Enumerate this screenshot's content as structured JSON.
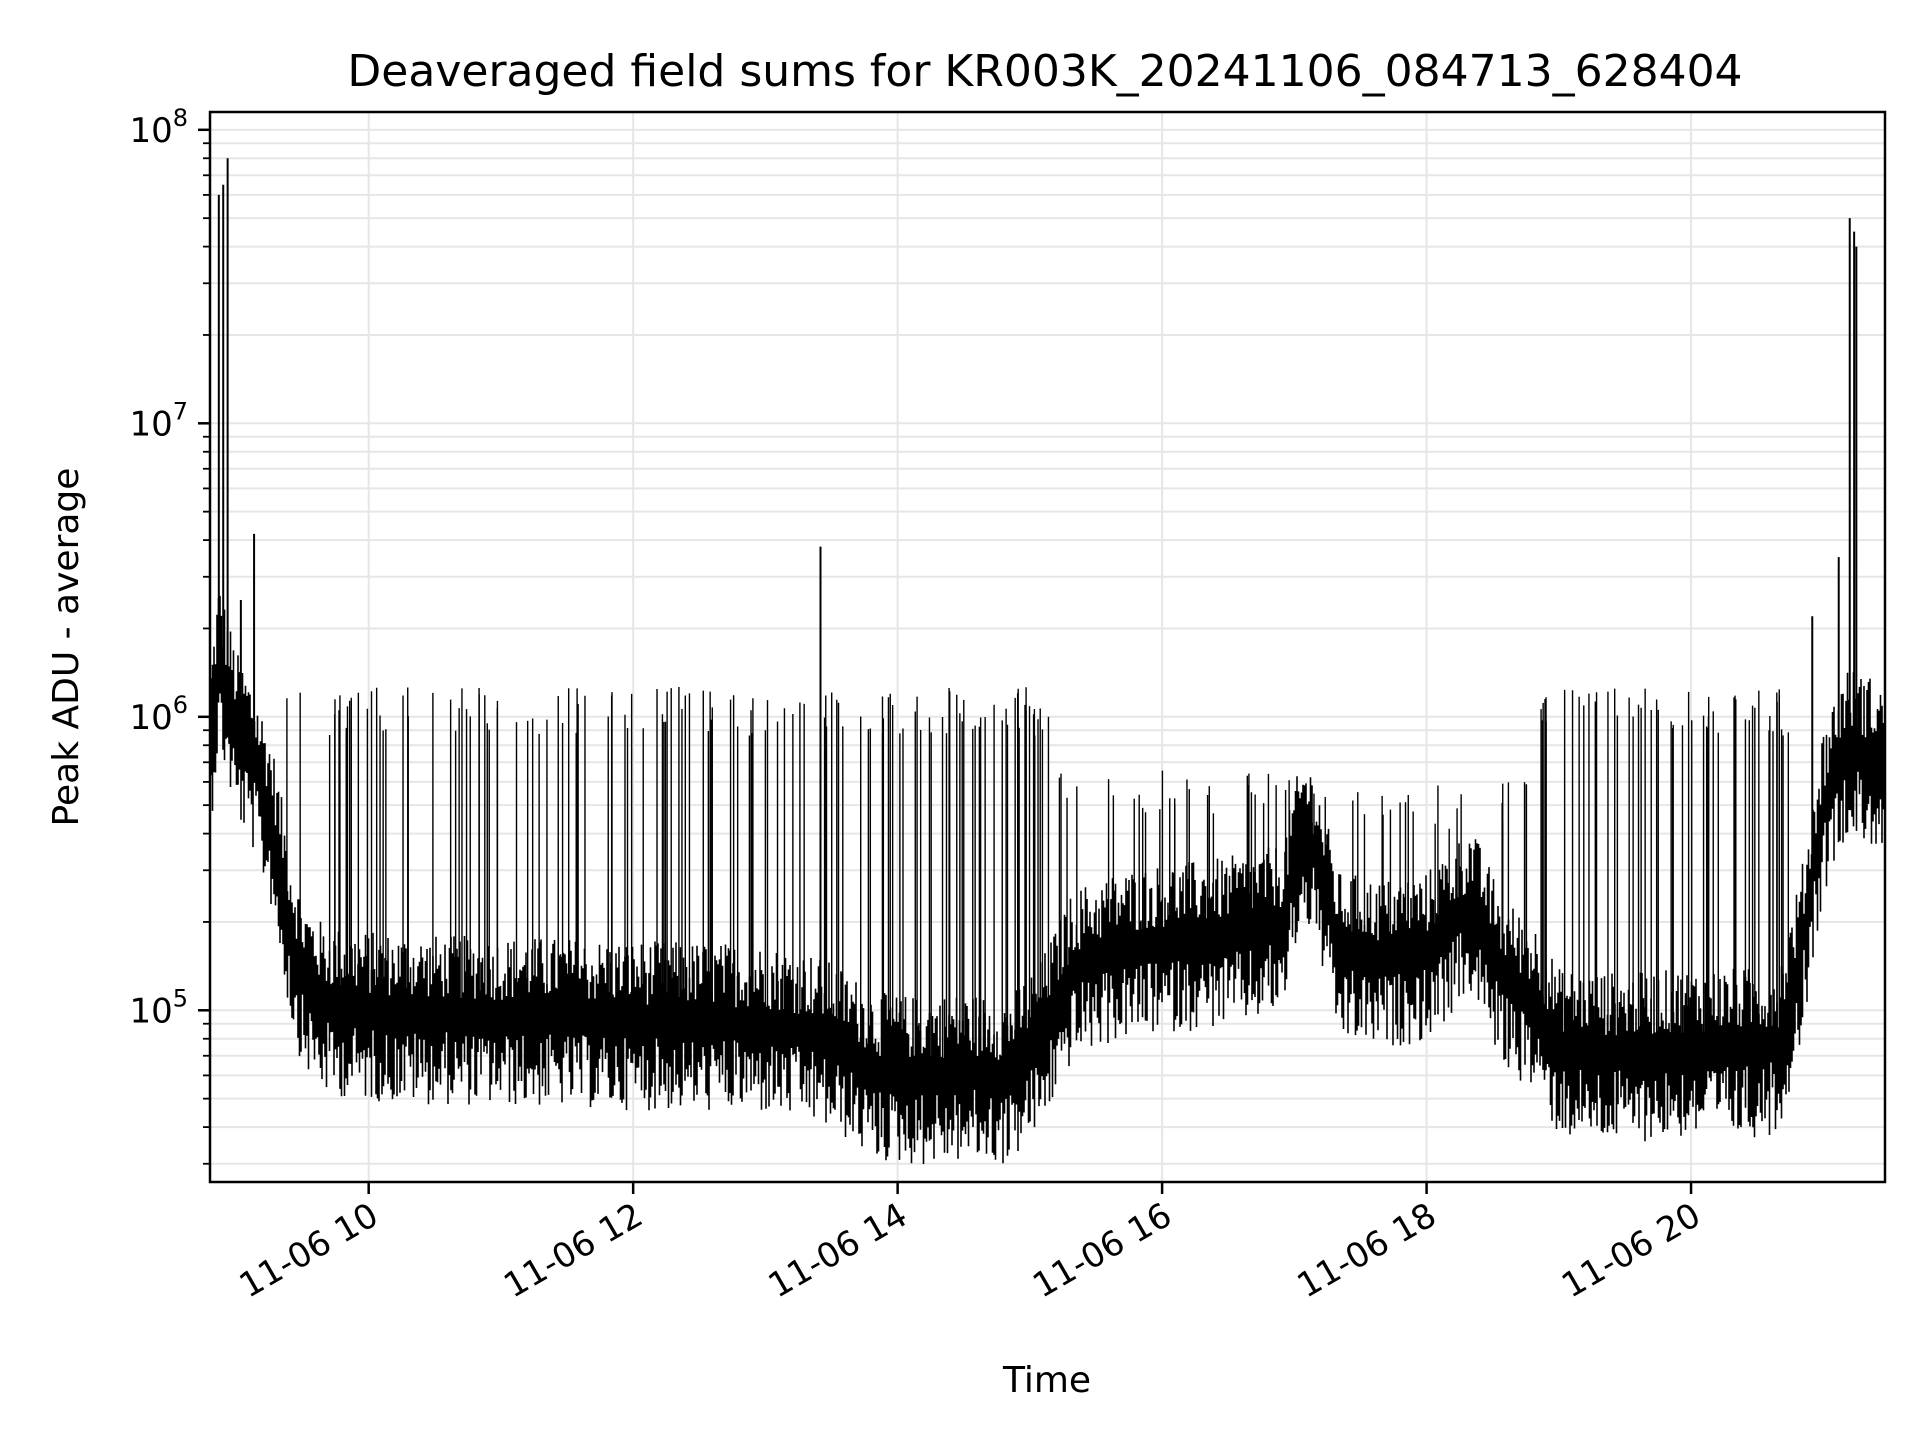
{
  "chart_data": {
    "type": "line",
    "title": "Deaveraged field sums for KR003K_20241106_084713_628404",
    "xlabel": "Time",
    "ylabel": "Peak ADU - average",
    "yscale": "log",
    "grid": true,
    "line_color": "#000000",
    "grid_color": "#e6e6e6",
    "xlim": [
      "2024-11-06 08:48",
      "2024-11-06 21:28"
    ],
    "ylim": [
      26000,
      115000000
    ],
    "x_ticks": [
      "2024-11-06 10:00",
      "2024-11-06 12:00",
      "2024-11-06 14:00",
      "2024-11-06 16:00",
      "2024-11-06 18:00",
      "2024-11-06 20:00"
    ],
    "x_tick_labels": [
      "11-06 10",
      "11-06 12",
      "11-06 14",
      "11-06 16",
      "11-06 18",
      "11-06 20"
    ],
    "y_ticks": [
      100000,
      1000000,
      10000000,
      100000000
    ],
    "y_tick_labels": [
      {
        "base": "10",
        "exp": "5"
      },
      {
        "base": "10",
        "exp": "6"
      },
      {
        "base": "10",
        "exp": "7"
      },
      {
        "base": "10",
        "exp": "8"
      }
    ],
    "series": [
      {
        "baseline": {
          "x": [
            "2024-11-06 08:48",
            "2024-11-06 08:52",
            "2024-11-06 08:56",
            "2024-11-06 09:00",
            "2024-11-06 09:04",
            "2024-11-06 09:08",
            "2024-11-06 09:12",
            "2024-11-06 09:16",
            "2024-11-06 09:20",
            "2024-11-06 09:25",
            "2024-11-06 09:30",
            "2024-11-06 09:40",
            "2024-11-06 10:00",
            "2024-11-06 10:30",
            "2024-11-06 11:00",
            "2024-11-06 11:30",
            "2024-11-06 12:00",
            "2024-11-06 12:30",
            "2024-11-06 12:50",
            "2024-11-06 13:00",
            "2024-11-06 13:20",
            "2024-11-06 13:35",
            "2024-11-06 13:50",
            "2024-11-06 14:10",
            "2024-11-06 14:30",
            "2024-11-06 14:50",
            "2024-11-06 15:05",
            "2024-11-06 15:20",
            "2024-11-06 15:40",
            "2024-11-06 16:00",
            "2024-11-06 16:20",
            "2024-11-06 16:40",
            "2024-11-06 16:55",
            "2024-11-06 17:00",
            "2024-11-06 17:05",
            "2024-11-06 17:10",
            "2024-11-06 17:20",
            "2024-11-06 17:40",
            "2024-11-06 18:00",
            "2024-11-06 18:10",
            "2024-11-06 18:20",
            "2024-11-06 18:35",
            "2024-11-06 18:50",
            "2024-11-06 19:00",
            "2024-11-06 19:30",
            "2024-11-06 20:00",
            "2024-11-06 20:30",
            "2024-11-06 20:40",
            "2024-11-06 20:50",
            "2024-11-06 21:00",
            "2024-11-06 21:10",
            "2024-11-06 21:20",
            "2024-11-06 21:28"
          ],
          "y": [
            800000,
            1600000,
            1200000,
            900000,
            800000,
            700000,
            560000,
            450000,
            300000,
            180000,
            130000,
            105000,
            100000,
            97000,
            96000,
            95000,
            93000,
            92000,
            91000,
            90000,
            85000,
            75000,
            62000,
            60000,
            62000,
            60000,
            80000,
            140000,
            160000,
            170000,
            175000,
            185000,
            200000,
            320000,
            400000,
            340000,
            160000,
            150000,
            160000,
            190000,
            230000,
            130000,
            105000,
            75000,
            72000,
            75000,
            75000,
            78000,
            160000,
            500000,
            800000,
            750000,
            700000
          ]
        },
        "spikes": [
          {
            "x": "2024-11-06 08:52",
            "y": 60000000
          },
          {
            "x": "2024-11-06 08:54",
            "y": 65000000
          },
          {
            "x": "2024-11-06 08:56",
            "y": 80000000
          },
          {
            "x": "2024-11-06 09:02",
            "y": 2500000
          },
          {
            "x": "2024-11-06 09:08",
            "y": 4200000
          },
          {
            "x": "2024-11-06 13:25",
            "y": 3800000
          },
          {
            "x": "2024-11-06 20:55",
            "y": 2200000
          },
          {
            "x": "2024-11-06 21:07",
            "y": 3500000
          },
          {
            "x": "2024-11-06 21:12",
            "y": 50000000
          },
          {
            "x": "2024-11-06 21:14",
            "y": 45000000
          },
          {
            "x": "2024-11-06 21:15",
            "y": 40000000
          }
        ],
        "spike_bands": [
          {
            "from": "2024-11-06 09:20",
            "to": "2024-11-06 15:10",
            "count": 140,
            "y": 1150000
          },
          {
            "from": "2024-11-06 15:10",
            "to": "2024-11-06 17:00",
            "count": 30,
            "y": 600000
          },
          {
            "from": "2024-11-06 17:00",
            "to": "2024-11-06 18:50",
            "count": 25,
            "y": 550000
          },
          {
            "from": "2024-11-06 18:50",
            "to": "2024-11-06 20:45",
            "count": 55,
            "y": 1150000
          }
        ]
      }
    ]
  }
}
